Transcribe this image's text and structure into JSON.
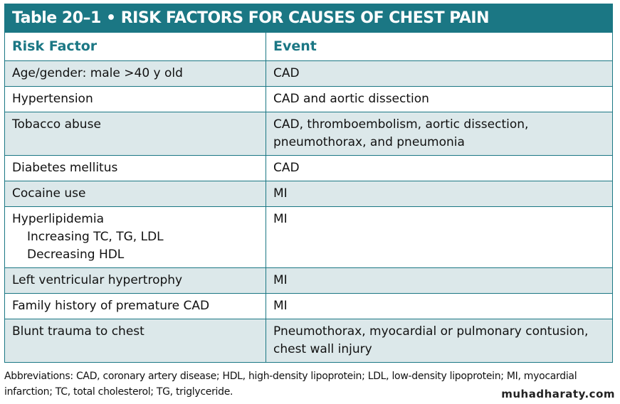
{
  "title": "Table 20–1  •  RISK FACTORS FOR CAUSES OF CHEST PAIN",
  "headers": [
    "Risk Factor",
    "Event"
  ],
  "rows": [
    {
      "factor": "Age/gender: male >40 y old",
      "event": "CAD"
    },
    {
      "factor": "Hypertension",
      "event": "CAD and aortic dissection"
    },
    {
      "factor": "Tobacco abuse",
      "event": "CAD, thromboembolism, aortic dissection,",
      "event2": "pneumothorax, and pneumonia"
    },
    {
      "factor": "Diabetes mellitus",
      "event": "CAD"
    },
    {
      "factor": "Cocaine use",
      "event": "MI"
    },
    {
      "factor": "Hyperlipidemia",
      "sub": [
        "Increasing TC, TG, LDL",
        "Decreasing HDL"
      ],
      "event": "MI"
    },
    {
      "factor": "Left ventricular hypertrophy",
      "event": "MI"
    },
    {
      "factor": "Family history of premature CAD",
      "event": "MI"
    },
    {
      "factor": "Blunt trauma to chest",
      "event": "Pneumothorax, myocardial or pulmonary contusion,",
      "event2": "chest wall injury"
    }
  ],
  "footnote": [
    "Abbreviations: CAD, coronary artery disease; HDL, high-density lipoprotein; LDL, low-density lipoprotein; MI, myocardial",
    "infarction; TC, total cholesterol; TG, triglyceride."
  ],
  "watermark": "muhadharaty.com",
  "colors": {
    "accent": "#1b7784",
    "shade": "#dce8ea"
  }
}
